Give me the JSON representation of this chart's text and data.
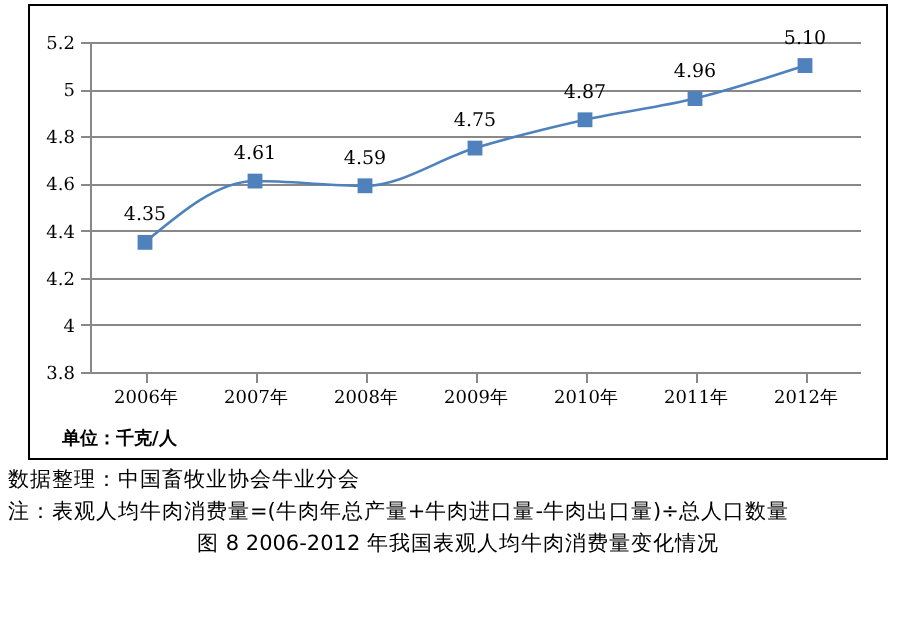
{
  "chart_data": {
    "type": "line",
    "title": "图 8   2006-2012 年我国表观人均牛肉消费量变化情况",
    "categories": [
      "2006年",
      "2007年",
      "2008年",
      "2009年",
      "2010年",
      "2011年",
      "2012年"
    ],
    "series": [
      {
        "color": "#4f81bd",
        "values": [
          4.35,
          4.61,
          4.59,
          4.75,
          4.87,
          4.96,
          5.1
        ],
        "value_labels": [
          "4.35",
          "4.61",
          "4.59",
          "4.75",
          "4.87",
          "4.96",
          "5.10"
        ]
      }
    ],
    "ylim": [
      3.8,
      5.2
    ],
    "yticks": [
      3.8,
      4,
      4.2,
      4.4,
      4.6,
      4.8,
      5,
      5.2
    ],
    "grid": "y",
    "marker": "square",
    "line_style": "solid",
    "annotations": [
      "单位：千克/人",
      "数据整理：中国畜牧业协会牛业分会",
      "注：表观人均牛肉消费量=(牛肉年总产量+牛肉进口量-牛肉出口量)÷总人口数量"
    ]
  }
}
